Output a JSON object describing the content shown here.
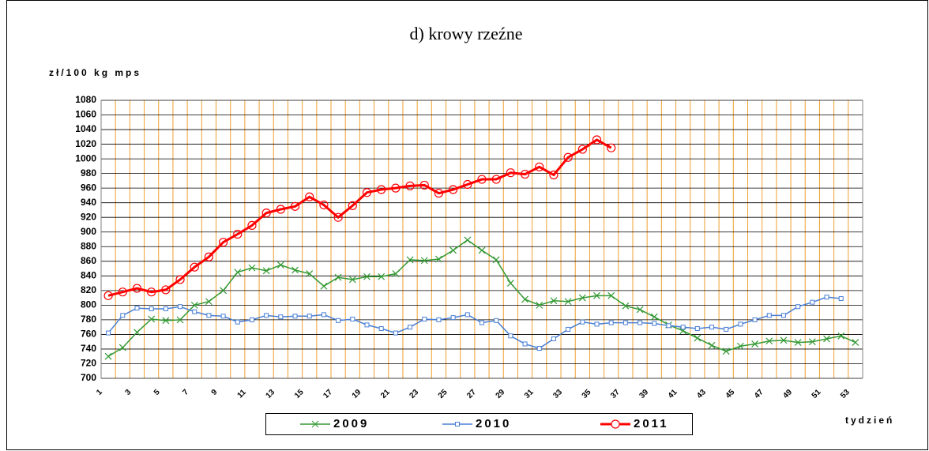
{
  "chart_data": {
    "type": "line",
    "title": "d) krowy rzeźne",
    "y_label": "zł/100 kg mps",
    "x_label": "tydzień",
    "categories": [
      "1",
      null,
      "3",
      null,
      "5",
      null,
      "7",
      null,
      "9",
      null,
      "11",
      null,
      "13",
      null,
      "15",
      null,
      "17",
      null,
      "19",
      null,
      "21",
      null,
      "23",
      null,
      "25",
      null,
      "27",
      null,
      "29",
      null,
      "31",
      null,
      "33",
      null,
      "35",
      null,
      "37",
      null,
      "39",
      null,
      "41",
      null,
      "43",
      null,
      "45",
      null,
      "47",
      null,
      "49",
      null,
      "51",
      null,
      "53"
    ],
    "series": [
      {
        "name": "2009",
        "color": "#339933",
        "marker": "x",
        "values": [
          730,
          742,
          763,
          781,
          779,
          780,
          800,
          805,
          820,
          845,
          851,
          847,
          855,
          848,
          843,
          826,
          838,
          835,
          839,
          839,
          843,
          862,
          861,
          863,
          875,
          889,
          875,
          862,
          830,
          808,
          800,
          806,
          805,
          810,
          813,
          813,
          799,
          794,
          784,
          773,
          765,
          755,
          745,
          737,
          744,
          747,
          751,
          752,
          749,
          750,
          754,
          758,
          749
        ]
      },
      {
        "name": "2010",
        "color": "#4a7fd4",
        "marker": "square",
        "values": [
          762,
          786,
          796,
          795,
          795,
          798,
          791,
          786,
          785,
          777,
          780,
          786,
          784,
          785,
          785,
          787,
          779,
          781,
          773,
          768,
          762,
          770,
          781,
          780,
          783,
          787,
          776,
          779,
          758,
          747,
          741,
          754,
          767,
          777,
          774,
          776,
          776,
          776,
          775,
          772,
          770,
          768,
          770,
          767,
          774,
          780,
          786,
          786,
          798,
          804,
          811,
          809,
          null
        ]
      },
      {
        "name": "2011",
        "color": "#ff0000",
        "marker": "circle",
        "values": [
          813,
          818,
          823,
          818,
          821,
          835,
          852,
          866,
          886,
          897,
          909,
          926,
          931,
          935,
          948,
          937,
          920,
          936,
          954,
          958,
          960,
          963,
          964,
          953,
          958,
          965,
          972,
          972,
          981,
          979,
          989,
          978,
          1002,
          1013,
          1026,
          1015,
          null,
          null,
          null,
          null,
          null,
          null,
          null,
          null,
          null,
          null,
          null,
          null,
          null,
          null,
          null,
          null,
          null
        ]
      }
    ],
    "ylim": [
      700,
      1080
    ],
    "yticks": [
      700,
      720,
      740,
      760,
      780,
      800,
      820,
      840,
      860,
      880,
      900,
      920,
      940,
      960,
      980,
      1000,
      1020,
      1040,
      1060,
      1080
    ],
    "grid": true,
    "legend": "bottom"
  }
}
